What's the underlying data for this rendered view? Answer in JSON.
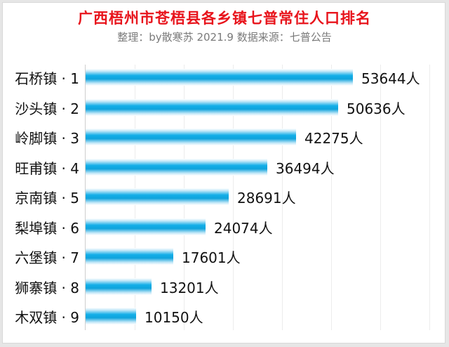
{
  "header": {
    "title": "广西梧州市苍梧县各乡镇七普常住人口排名",
    "subtitle": "整理：by散寒苏 2021.9 数据来源：七普公告"
  },
  "colors": {
    "title": "#e8141c",
    "bar": "#13aee8",
    "subtitle": "#7a7a7a"
  },
  "chart_data": {
    "type": "bar",
    "orientation": "horizontal",
    "title": "广西梧州市苍梧县各乡镇七普常住人口排名",
    "subtitle": "整理：by散寒苏 2021.9 数据来源：七普公告",
    "categories": [
      "石桥镇 · 1",
      "沙头镇 · 2",
      "岭脚镇 · 3",
      "旺甫镇 · 4",
      "京南镇 · 5",
      "梨埠镇 · 6",
      "六堡镇 · 7",
      "狮寨镇 · 8",
      "木双镇 · 9"
    ],
    "values": [
      53644,
      50636,
      42275,
      36494,
      28691,
      24074,
      17601,
      13201,
      10150
    ],
    "value_labels": [
      "53644人",
      "50636人",
      "42275人",
      "36494人",
      "28691人",
      "24074人",
      "17601人",
      "13201人",
      "10150人"
    ],
    "unit": "人",
    "xlabel": "",
    "ylabel": "",
    "xlim": [
      0,
      70000
    ],
    "grid": true,
    "legend": null
  }
}
